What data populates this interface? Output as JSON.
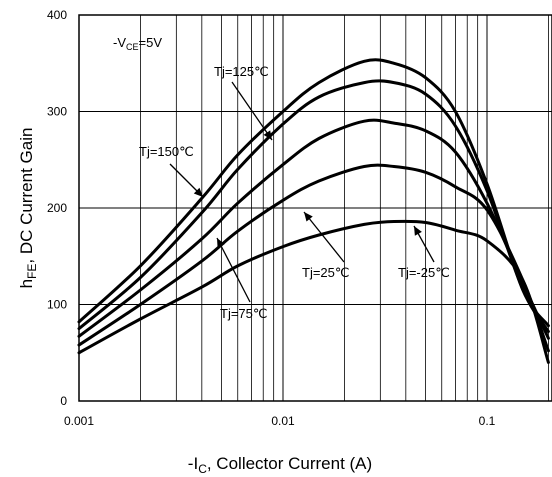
{
  "chart_data": {
    "type": "line",
    "title": "",
    "xlabel": {
      "pre": "-I",
      "sub": "C",
      "post": ", Collector Current (A)"
    },
    "ylabel": {
      "pre": "h",
      "sub": "FE",
      "post": ",  DC Current Gain"
    },
    "xscale": "log",
    "xlim": [
      0.001,
      0.2
    ],
    "ylim": [
      0,
      400
    ],
    "x_ticks": [
      {
        "value": 0.001,
        "label": "0.001"
      },
      {
        "value": 0.01,
        "label": "0.01"
      },
      {
        "value": 0.1,
        "label": "0.1"
      }
    ],
    "y_ticks": [
      {
        "value": 0,
        "label": "0"
      },
      {
        "value": 100,
        "label": "100"
      },
      {
        "value": 200,
        "label": "200"
      },
      {
        "value": 300,
        "label": "300"
      },
      {
        "value": 400,
        "label": "400"
      }
    ],
    "grid": true,
    "condition": {
      "pre": "-V",
      "sub": "CE",
      "post": "=5V"
    },
    "line_color": "#000000",
    "series": [
      {
        "name": "Tj=150℃",
        "x": [
          0.001,
          0.002,
          0.004,
          0.006,
          0.01,
          0.015,
          0.025,
          0.035,
          0.05,
          0.07,
          0.1,
          0.15,
          0.2
        ],
        "y": [
          82,
          140,
          210,
          255,
          300,
          330,
          352,
          350,
          335,
          300,
          225,
          115,
          78
        ]
      },
      {
        "name": "Tj=125℃",
        "x": [
          0.001,
          0.002,
          0.004,
          0.006,
          0.01,
          0.015,
          0.025,
          0.035,
          0.05,
          0.07,
          0.1,
          0.15,
          0.2
        ],
        "y": [
          75,
          128,
          195,
          240,
          287,
          315,
          330,
          330,
          318,
          285,
          218,
          115,
          72
        ]
      },
      {
        "name": "Tj=75℃",
        "x": [
          0.001,
          0.002,
          0.004,
          0.006,
          0.01,
          0.015,
          0.025,
          0.035,
          0.05,
          0.07,
          0.1,
          0.15,
          0.2
        ],
        "y": [
          67,
          115,
          168,
          205,
          245,
          272,
          290,
          288,
          280,
          258,
          205,
          122,
          65
        ]
      },
      {
        "name": "Tj=25℃",
        "x": [
          0.001,
          0.002,
          0.004,
          0.006,
          0.01,
          0.015,
          0.025,
          0.035,
          0.05,
          0.07,
          0.1,
          0.15,
          0.2
        ],
        "y": [
          58,
          100,
          145,
          176,
          208,
          228,
          243,
          243,
          237,
          222,
          198,
          125,
          52
        ]
      },
      {
        "name": "Tj=-25℃",
        "x": [
          0.001,
          0.002,
          0.004,
          0.006,
          0.01,
          0.015,
          0.025,
          0.035,
          0.05,
          0.07,
          0.1,
          0.15,
          0.2
        ],
        "y": [
          50,
          85,
          118,
          140,
          160,
          172,
          183,
          186,
          185,
          177,
          166,
          125,
          40
        ]
      }
    ],
    "annotations": [
      {
        "text": "Tj=125℃",
        "series": "Tj=125℃"
      },
      {
        "text": "Tj=150℃",
        "series": "Tj=150℃"
      },
      {
        "text": "Tj=25℃",
        "series": "Tj=25℃"
      },
      {
        "text": "Tj=-25℃",
        "series": "Tj=-25℃"
      },
      {
        "text": "Tj=75℃",
        "series": "Tj=75℃"
      }
    ]
  }
}
